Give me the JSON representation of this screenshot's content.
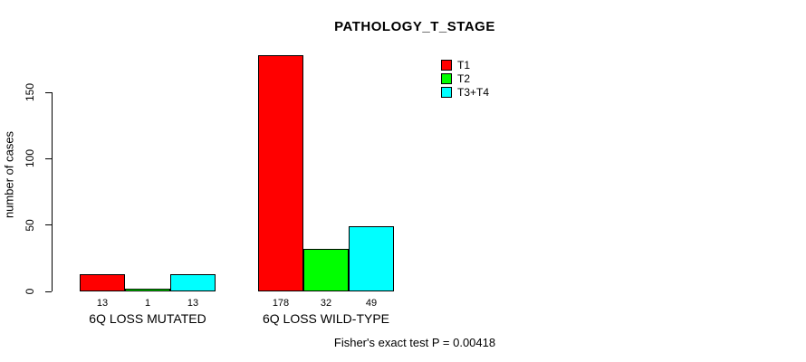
{
  "title": "PATHOLOGY_T_STAGE",
  "footer": "Fisher's exact test P = 0.00418",
  "chart_data": {
    "type": "bar",
    "title": "PATHOLOGY_T_STAGE",
    "xlabel": "",
    "ylabel": "number of cases",
    "categories": [
      "6Q LOSS MUTATED",
      "6Q LOSS WILD-TYPE"
    ],
    "series": [
      {
        "name": "T1",
        "color": "#ff0000",
        "values": [
          13,
          178
        ]
      },
      {
        "name": "T2",
        "color": "#00ff00",
        "values": [
          1,
          32
        ]
      },
      {
        "name": "T3+T4",
        "color": "#00ffff",
        "values": [
          13,
          49
        ]
      }
    ],
    "bar_value_labels": [
      [
        "13",
        "1",
        "13"
      ],
      [
        "178",
        "32",
        "49"
      ]
    ],
    "yticks": [
      0,
      50,
      100,
      150
    ],
    "ylim": [
      0,
      150
    ],
    "grid": false,
    "legend_position": "top-right",
    "annotation": "Fisher's exact test P = 0.00418"
  }
}
